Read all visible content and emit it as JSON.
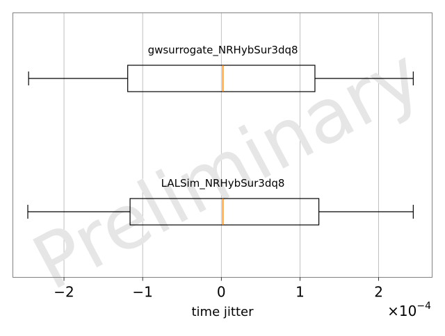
{
  "chart_data": {
    "type": "boxplot",
    "orientation": "horizontal",
    "xlabel": "time jitter",
    "x_offset_label": "×10",
    "x_offset_exponent": "−4",
    "xlim": [
      -2.65,
      2.68
    ],
    "xticks": [
      -2,
      -1,
      0,
      1,
      2
    ],
    "xtick_labels": [
      "−2",
      "−1",
      "0",
      "1",
      "2"
    ],
    "grid": "vertical",
    "watermark": "Preliminary",
    "series": [
      {
        "name": "gwsurrogate_NRHybSur3dq8",
        "whisker_low": -2.45,
        "q1": -1.19,
        "median": 0.02,
        "q3": 1.19,
        "whisker_high": 2.44
      },
      {
        "name": "LALSim_NRHybSur3dq8",
        "whisker_low": -2.46,
        "q1": -1.16,
        "median": 0.02,
        "q3": 1.24,
        "whisker_high": 2.44
      }
    ],
    "colors": {
      "box": "#000000",
      "median": "#ff7f0e",
      "grid": "#b0b0b0",
      "watermark": "#e6e6e6",
      "frame": "#808080"
    }
  }
}
